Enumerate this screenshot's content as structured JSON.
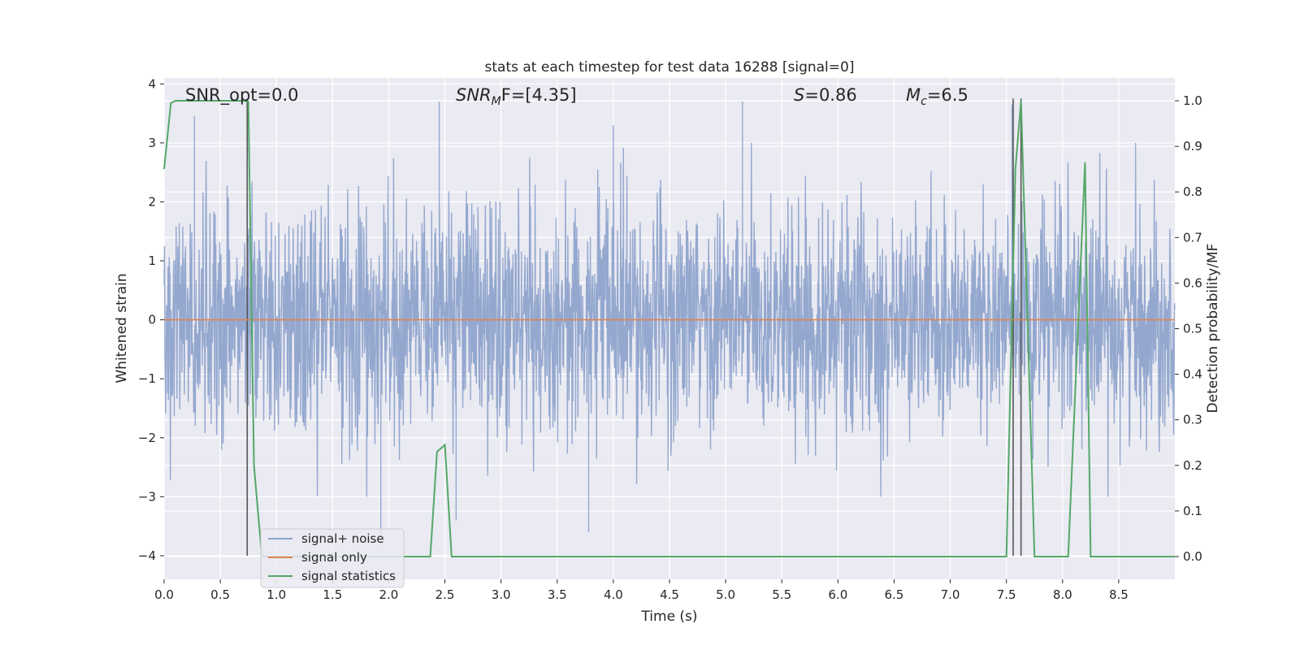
{
  "chart_data": {
    "type": "line",
    "title": "stats at each timestep for test data 16288 [signal=0]",
    "xlabel": "Time (s)",
    "ylabel": "Whitened strain",
    "ylabel_right": "Detection probability/MF",
    "xlim": [
      0.0,
      9.0
    ],
    "ylim": [
      -4.4,
      4.1
    ],
    "ylim_right": [
      -0.05,
      1.05
    ],
    "xticks": [
      "0.0",
      "0.5",
      "1.0",
      "1.5",
      "2.0",
      "2.5",
      "3.0",
      "3.5",
      "4.0",
      "4.5",
      "5.0",
      "5.5",
      "6.0",
      "6.5",
      "7.0",
      "7.5",
      "8.0",
      "8.5"
    ],
    "yticks": [
      "4",
      "3",
      "2",
      "1",
      "0",
      "−1",
      "−2",
      "−3",
      "−4"
    ],
    "yticks_right": [
      "1.0",
      "0.9",
      "0.8",
      "0.7",
      "0.6",
      "0.5",
      "0.4",
      "0.3",
      "0.2",
      "0.1",
      "0.0"
    ],
    "grid": true,
    "legend_position": "lower-left",
    "annotations": {
      "snr_opt": "SNR_opt=0.0",
      "snr_mf_main": "SNR",
      "snr_mf_sub": "M",
      "snr_mf_rest": "F=[4.35]",
      "s_main": "S",
      "s_rest": "=0.86",
      "mc_main": "M",
      "mc_sub": "c",
      "mc_rest": "=6.5"
    },
    "series": [
      {
        "name": "signal+ noise",
        "color": "#8fa4cc",
        "description_values": "whitened noise, approx. Gaussian, amplitude range -3.8 to 3.7",
        "peaks": [
          [
            0.27,
            3.45
          ],
          [
            2.45,
            3.7
          ],
          [
            4.0,
            3.3
          ],
          [
            5.15,
            3.7
          ],
          [
            7.55,
            3.65
          ],
          [
            1.93,
            -3.8
          ],
          [
            3.78,
            -3.6
          ],
          [
            2.6,
            -3.4
          ]
        ]
      },
      {
        "name": "signal only",
        "color": "#dd8452",
        "x": [
          0.0,
          9.0
        ],
        "y": [
          0.0,
          0.0
        ]
      },
      {
        "name": "signal statistics",
        "color": "#55a868",
        "axis": "right",
        "x": [
          0.0,
          0.06,
          0.1,
          0.7,
          0.75,
          0.8,
          0.87,
          2.37,
          2.43,
          2.5,
          2.56,
          7.5,
          7.58,
          7.63,
          7.75,
          8.05,
          8.2,
          8.25,
          9.0
        ],
        "y": [
          0.85,
          0.995,
          1.0,
          1.0,
          0.998,
          0.2,
          0.0,
          0.0,
          0.23,
          0.245,
          0.0,
          0.0,
          0.85,
          1.0,
          0.0,
          0.0,
          0.865,
          0.0,
          0.0
        ]
      }
    ],
    "vlines": {
      "color": "#555555",
      "x": [
        0.74,
        7.56,
        7.63
      ],
      "y_from": -4.0,
      "y_to": 3.75
    },
    "white_hlines_right": [
      0.0,
      0.2,
      0.4,
      0.6,
      0.8,
      1.0,
      0.5,
      0.3,
      0.7,
      0.1,
      0.9
    ]
  }
}
